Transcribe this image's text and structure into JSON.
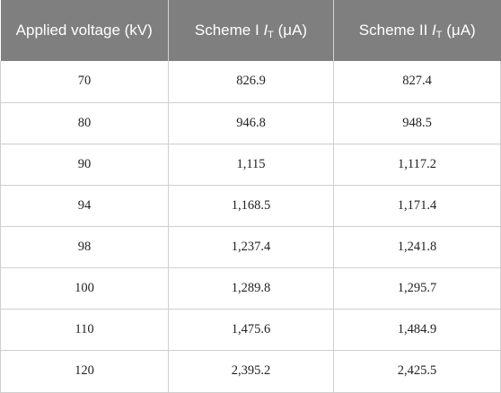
{
  "header": {
    "col1": "Applied voltage (kV)",
    "col2_prefix": "Scheme I ",
    "col3_prefix": "Scheme II ",
    "symbol": "I",
    "subscript": "T",
    "unit": " (μA)"
  },
  "rows": [
    {
      "voltage": "70",
      "scheme1": "826.9",
      "scheme2": "827.4"
    },
    {
      "voltage": "80",
      "scheme1": "946.8",
      "scheme2": "948.5"
    },
    {
      "voltage": "90",
      "scheme1": "1,115",
      "scheme2": "1,117.2"
    },
    {
      "voltage": "94",
      "scheme1": "1,168.5",
      "scheme2": "1,171.4"
    },
    {
      "voltage": "98",
      "scheme1": "1,237.4",
      "scheme2": "1,241.8"
    },
    {
      "voltage": "100",
      "scheme1": "1,289.8",
      "scheme2": "1,295.7"
    },
    {
      "voltage": "110",
      "scheme1": "1,475.6",
      "scheme2": "1,484.9"
    },
    {
      "voltage": "120",
      "scheme1": "2,395.2",
      "scheme2": "2,425.5"
    }
  ]
}
